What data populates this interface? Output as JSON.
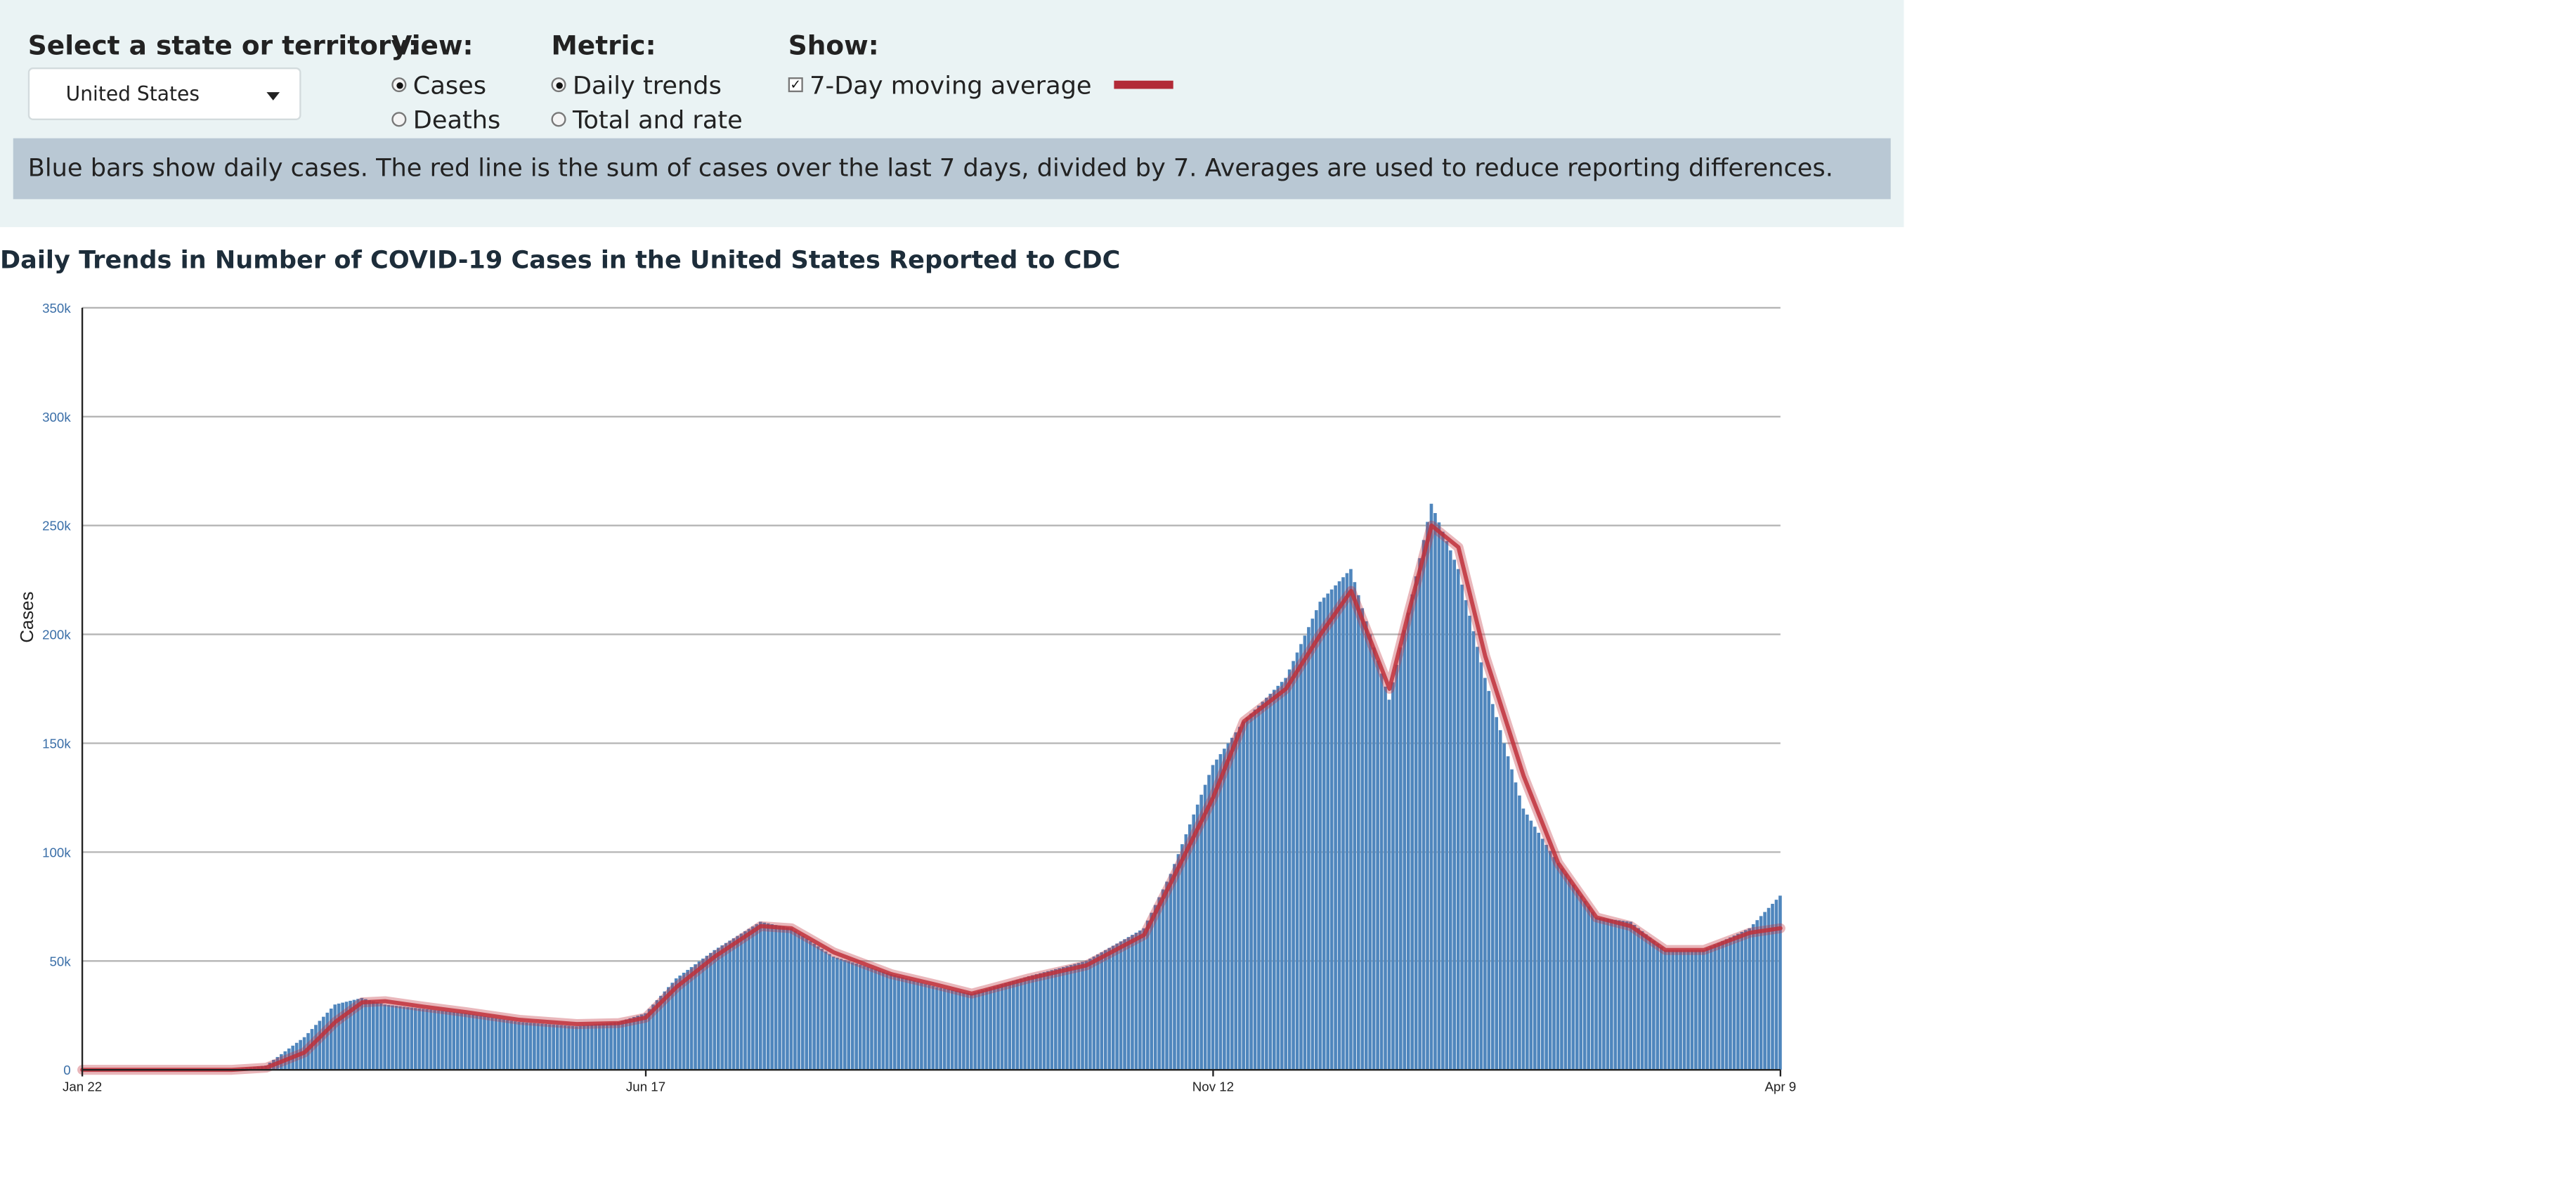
{
  "controls": {
    "state_label": "Select a state or territory:",
    "state_value": "United States",
    "view_label": "View:",
    "view_options": [
      "Cases",
      "Deaths"
    ],
    "view_selected": "Cases",
    "metric_label": "Metric:",
    "metric_options": [
      "Daily trends",
      "Total and rate"
    ],
    "metric_selected": "Daily trends",
    "show_label": "Show:",
    "show_option": "7-Day moving average",
    "show_checked": true,
    "legend_color": "#b22a37"
  },
  "info_text": "Blue bars show daily cases. The red line is the sum of cases over the last 7 days, divided by 7. Averages are used to reduce reporting differences.",
  "chart_data": {
    "type": "bar",
    "title": "Daily Trends in Number of COVID-19 Cases in the United States Reported to CDC",
    "ylabel": "Cases",
    "xlabel": "",
    "ylim": [
      0,
      350000
    ],
    "y_ticks": [
      "0",
      "50k",
      "100k",
      "150k",
      "200k",
      "250k",
      "300k",
      "350k"
    ],
    "x_ticks": [
      "Jan 22",
      "Jun 17",
      "Nov 12",
      "Apr 9"
    ],
    "x_start": "Jan 22",
    "x_end": "Apr 9",
    "grid": true,
    "bar_color": "#4f86bd",
    "line_color": "#c0313b",
    "series": [
      {
        "name": "Daily cases",
        "type": "bar",
        "x": [
          "2020-01-22",
          "2020-03-01",
          "2020-03-10",
          "2020-03-20",
          "2020-03-28",
          "2020-04-04",
          "2020-04-10",
          "2020-04-20",
          "2020-05-01",
          "2020-05-15",
          "2020-05-30",
          "2020-06-10",
          "2020-06-17",
          "2020-06-25",
          "2020-07-05",
          "2020-07-17",
          "2020-07-25",
          "2020-08-05",
          "2020-08-20",
          "2020-09-01",
          "2020-09-10",
          "2020-09-25",
          "2020-10-10",
          "2020-10-25",
          "2020-11-01",
          "2020-11-12",
          "2020-11-20",
          "2020-12-01",
          "2020-12-10",
          "2020-12-18",
          "2020-12-28",
          "2021-01-02",
          "2021-01-08",
          "2021-01-15",
          "2021-01-22",
          "2021-02-01",
          "2021-02-10",
          "2021-02-20",
          "2021-03-01",
          "2021-03-10",
          "2021-03-20",
          "2021-04-01",
          "2021-04-09"
        ],
        "values": [
          0,
          0,
          2000,
          15000,
          30000,
          33000,
          30000,
          28000,
          26000,
          22000,
          20000,
          22000,
          26000,
          42000,
          55000,
          68000,
          65000,
          52000,
          44000,
          38000,
          35000,
          43000,
          50000,
          65000,
          90000,
          140000,
          160000,
          180000,
          215000,
          230000,
          170000,
          210000,
          260000,
          230000,
          180000,
          120000,
          95000,
          70000,
          68000,
          55000,
          55000,
          65000,
          80000
        ]
      },
      {
        "name": "7-Day moving average",
        "type": "line",
        "x": [
          "2020-01-22",
          "2020-03-01",
          "2020-03-10",
          "2020-03-20",
          "2020-03-28",
          "2020-04-04",
          "2020-04-10",
          "2020-04-20",
          "2020-05-01",
          "2020-05-15",
          "2020-05-30",
          "2020-06-10",
          "2020-06-17",
          "2020-06-25",
          "2020-07-05",
          "2020-07-17",
          "2020-07-25",
          "2020-08-05",
          "2020-08-20",
          "2020-09-01",
          "2020-09-10",
          "2020-09-25",
          "2020-10-10",
          "2020-10-25",
          "2020-11-01",
          "2020-11-12",
          "2020-11-20",
          "2020-12-01",
          "2020-12-10",
          "2020-12-18",
          "2020-12-28",
          "2021-01-02",
          "2021-01-08",
          "2021-01-15",
          "2021-01-22",
          "2021-02-01",
          "2021-02-10",
          "2021-02-20",
          "2021-03-01",
          "2021-03-10",
          "2021-03-20",
          "2021-04-01",
          "2021-04-09"
        ],
        "values": [
          0,
          0,
          1000,
          8000,
          22000,
          31000,
          31500,
          29000,
          26500,
          23000,
          21000,
          21500,
          24000,
          38000,
          52000,
          66000,
          65000,
          54000,
          44000,
          39000,
          35000,
          42000,
          48000,
          62000,
          86000,
          125000,
          160000,
          175000,
          200000,
          220000,
          175000,
          210000,
          250000,
          240000,
          190000,
          135000,
          95000,
          70000,
          66000,
          55000,
          55000,
          63000,
          65000
        ]
      }
    ]
  }
}
